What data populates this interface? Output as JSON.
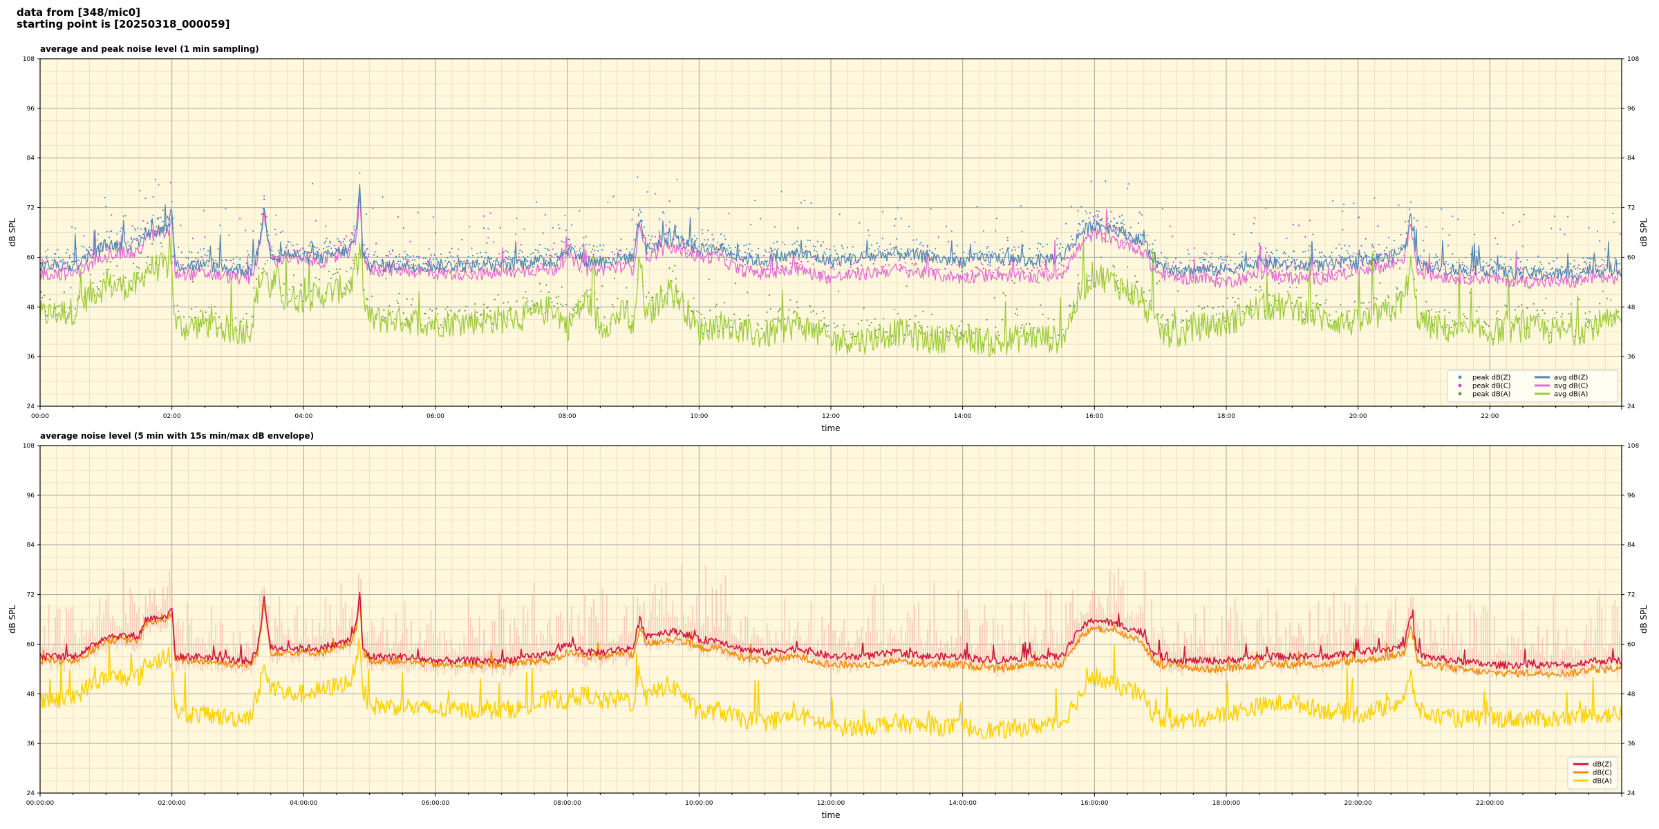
{
  "header": {
    "line1": "data from [348/mic0]",
    "line2": "starting point is [20250318_000059]"
  },
  "chart_data": [
    {
      "type": "line",
      "title": "average and peak noise level (1 min sampling)",
      "xlabel": "time",
      "ylabel": "dB SPL",
      "ylabel_right": "dB SPL",
      "ylim": [
        24,
        108
      ],
      "xlim": [
        0,
        24
      ],
      "x_unit": "hours",
      "yticks": [
        24,
        36,
        48,
        60,
        72,
        84,
        96,
        108
      ],
      "xticks": [
        "00:00",
        "02:00",
        "04:00",
        "06:00",
        "08:00",
        "10:00",
        "12:00",
        "14:00",
        "16:00",
        "18:00",
        "20:00",
        "22:00"
      ],
      "grid": true,
      "legend_position": "bottom-right",
      "legend": [
        {
          "label": "peak dB(Z)",
          "kind": "dot",
          "color": "#3a8fd0"
        },
        {
          "label": "peak dB(C)",
          "kind": "dot",
          "color": "#e040c8"
        },
        {
          "label": "peak dB(A)",
          "kind": "dot",
          "color": "#5a9a40"
        },
        {
          "label": "avg dB(Z)",
          "kind": "line",
          "color": "#4f86b4"
        },
        {
          "label": "avg dB(C)",
          "kind": "line",
          "color": "#e36ad6"
        },
        {
          "label": "avg dB(A)",
          "kind": "line",
          "color": "#9ccc3a"
        }
      ],
      "series_order": [
        "avg dB(A)",
        "avg dB(C)",
        "avg dB(Z)"
      ],
      "x": [
        0,
        0.5,
        0.75,
        1,
        1.5,
        1.6,
        1.95,
        2.0,
        2.05,
        2.2,
        2.5,
        3.0,
        3.2,
        3.3,
        3.4,
        3.5,
        3.6,
        3.7,
        4.0,
        4.3,
        4.5,
        4.7,
        4.8,
        4.85,
        4.9,
        5.0,
        5.5,
        6.0,
        7.0,
        7.5,
        7.8,
        8.0,
        8.3,
        8.5,
        8.9,
        9.0,
        9.1,
        9.2,
        9.5,
        9.7,
        10.0,
        10.3,
        10.6,
        11.0,
        11.5,
        12.0,
        12.5,
        13.0,
        13.5,
        14.0,
        14.5,
        15.0,
        15.5,
        15.8,
        16.0,
        16.3,
        16.7,
        16.9,
        17.0,
        17.3,
        17.5,
        18.0,
        18.5,
        19.0,
        19.5,
        20.0,
        20.5,
        20.7,
        20.8,
        20.9,
        21.0,
        21.5,
        22.0,
        22.5,
        23.0,
        23.3,
        23.5,
        23.7,
        24.0
      ],
      "series": [
        {
          "name": "avg dB(A)",
          "color": "#9ccc3a",
          "width": 1.3,
          "noise": 7,
          "values": [
            46,
            47,
            51,
            53,
            53,
            57,
            58,
            57,
            44,
            43,
            44,
            42,
            43,
            52,
            57,
            52,
            55,
            50,
            50,
            51,
            52,
            53,
            57,
            60,
            50,
            45,
            45,
            44,
            45,
            46,
            48,
            43,
            50,
            43,
            47,
            41,
            60,
            45,
            52,
            50,
            42,
            44,
            42,
            41,
            44,
            40,
            40,
            42,
            40,
            41,
            39,
            41,
            40,
            52,
            56,
            54,
            50,
            44,
            42,
            41,
            43,
            44,
            48,
            48,
            45,
            44,
            47,
            50,
            58,
            46,
            44,
            42,
            42,
            43,
            42,
            42,
            43,
            44,
            44
          ]
        },
        {
          "name": "avg dB(C)",
          "color": "#e36ad6",
          "width": 1.3,
          "noise": 3.2,
          "values": [
            56,
            56,
            58,
            61,
            61,
            65,
            66,
            70,
            56,
            56,
            56,
            55,
            55,
            60,
            70,
            60,
            59,
            60,
            59,
            59,
            60,
            61,
            65,
            76,
            60,
            57,
            57,
            56,
            56,
            57,
            57,
            60,
            57,
            57,
            58,
            57,
            69,
            60,
            62,
            62,
            60,
            60,
            57,
            56,
            57,
            55,
            56,
            57,
            56,
            55,
            56,
            55,
            56,
            63,
            66,
            64,
            62,
            57,
            56,
            55,
            55,
            54,
            56,
            55,
            55,
            57,
            58,
            60,
            68,
            57,
            56,
            55,
            55,
            54,
            54,
            54,
            55,
            55,
            55
          ]
        },
        {
          "name": "avg dB(Z)",
          "color": "#4f86b4",
          "width": 1.3,
          "noise": 3.2,
          "values": [
            58,
            58,
            60,
            63,
            63,
            66,
            67,
            71,
            58,
            58,
            58,
            57,
            57,
            61,
            71,
            61,
            60,
            61,
            60,
            60,
            61,
            62,
            66,
            77,
            61,
            58,
            58,
            58,
            58,
            59,
            59,
            62,
            59,
            59,
            60,
            60,
            70,
            62,
            64,
            64,
            62,
            62,
            60,
            59,
            61,
            59,
            60,
            61,
            60,
            59,
            60,
            59,
            60,
            66,
            68,
            67,
            64,
            60,
            58,
            57,
            57,
            57,
            59,
            58,
            58,
            59,
            60,
            62,
            70,
            59,
            58,
            57,
            57,
            56,
            56,
            56,
            57,
            57,
            57
          ]
        }
      ]
    },
    {
      "type": "line",
      "title": "average noise level (5 min with 15s min/max dB envelope)",
      "xlabel": "time",
      "ylabel": "dB SPL",
      "ylabel_right": "dB SPL",
      "ylim": [
        24,
        108
      ],
      "xlim": [
        0,
        24
      ],
      "x_unit": "hours",
      "yticks": [
        24,
        36,
        48,
        60,
        72,
        84,
        96,
        108
      ],
      "xticks": [
        "00:00:00",
        "02:00:00",
        "04:00:00",
        "06:00:00",
        "08:00:00",
        "10:00:00",
        "12:00:00",
        "14:00:00",
        "16:00:00",
        "18:00:00",
        "20:00:00",
        "22:00:00"
      ],
      "grid": true,
      "legend_position": "bottom-right",
      "legend": [
        {
          "label": "dB(Z)",
          "kind": "line",
          "color": "#d0143c"
        },
        {
          "label": "dB(C)",
          "kind": "line",
          "color": "#f08c00"
        },
        {
          "label": "dB(A)",
          "kind": "line",
          "color": "#ffd200"
        }
      ],
      "series_order": [
        "dB(A)",
        "dB(C)",
        "dB(Z)"
      ],
      "envelope_color": "#f4a8a0",
      "x": [
        0,
        0.5,
        0.75,
        1,
        1.5,
        1.6,
        1.95,
        2.0,
        2.05,
        2.2,
        2.5,
        3.0,
        3.2,
        3.3,
        3.4,
        3.5,
        3.6,
        3.7,
        4.0,
        4.3,
        4.5,
        4.7,
        4.8,
        4.85,
        4.9,
        5.0,
        5.5,
        6.0,
        7.0,
        7.5,
        7.8,
        8.0,
        8.3,
        8.5,
        8.9,
        9.0,
        9.1,
        9.2,
        9.5,
        9.7,
        10.0,
        10.3,
        10.6,
        11.0,
        11.5,
        12.0,
        12.5,
        13.0,
        13.5,
        14.0,
        14.5,
        15.0,
        15.5,
        15.8,
        16.0,
        16.3,
        16.7,
        16.9,
        17.0,
        17.3,
        17.5,
        18.0,
        18.5,
        19.0,
        19.5,
        20.0,
        20.5,
        20.7,
        20.8,
        20.9,
        21.0,
        21.5,
        22.0,
        22.5,
        23.0,
        23.3,
        23.5,
        23.7,
        24.0
      ],
      "series": [
        {
          "name": "dB(A)",
          "color": "#ffd200",
          "width": 1.6,
          "noise": 4.5,
          "values": [
            46,
            47,
            50,
            52,
            52,
            55,
            57,
            56,
            44,
            43,
            43,
            42,
            43,
            48,
            54,
            49,
            50,
            48,
            48,
            49,
            50,
            51,
            55,
            62,
            49,
            45,
            45,
            44,
            44,
            45,
            47,
            46,
            48,
            46,
            47,
            45,
            54,
            47,
            50,
            49,
            43,
            44,
            42,
            41,
            43,
            40,
            40,
            41,
            40,
            40,
            39,
            40,
            41,
            48,
            52,
            50,
            48,
            43,
            42,
            41,
            42,
            43,
            45,
            46,
            44,
            43,
            45,
            47,
            52,
            45,
            43,
            42,
            42,
            42,
            42,
            42,
            43,
            43,
            43
          ]
        },
        {
          "name": "dB(C)",
          "color": "#f08c00",
          "width": 1.6,
          "noise": 1.8,
          "values": [
            56,
            56,
            58,
            61,
            61,
            65,
            66,
            68,
            56,
            56,
            56,
            55,
            55,
            58,
            70,
            58,
            58,
            58,
            58,
            58,
            59,
            60,
            64,
            71,
            58,
            56,
            56,
            55,
            55,
            56,
            56,
            58,
            57,
            57,
            58,
            57,
            64,
            60,
            61,
            61,
            59,
            59,
            57,
            56,
            57,
            55,
            55,
            56,
            55,
            55,
            54,
            55,
            55,
            62,
            64,
            63,
            61,
            56,
            55,
            55,
            54,
            54,
            55,
            55,
            55,
            56,
            57,
            58,
            65,
            56,
            55,
            54,
            53,
            53,
            53,
            53,
            54,
            54,
            54
          ]
        },
        {
          "name": "dB(Z)",
          "color": "#d0143c",
          "width": 1.6,
          "noise": 1.8,
          "values": [
            57,
            57,
            59,
            62,
            62,
            66,
            67,
            69,
            57,
            57,
            57,
            56,
            56,
            59,
            71,
            59,
            59,
            59,
            59,
            59,
            60,
            61,
            65,
            72,
            59,
            57,
            57,
            56,
            56,
            57,
            58,
            60,
            58,
            58,
            59,
            59,
            66,
            62,
            63,
            63,
            61,
            61,
            59,
            58,
            59,
            57,
            57,
            58,
            57,
            57,
            56,
            57,
            57,
            64,
            66,
            65,
            63,
            58,
            57,
            56,
            56,
            56,
            57,
            57,
            57,
            58,
            59,
            60,
            67,
            58,
            57,
            56,
            55,
            55,
            55,
            55,
            56,
            56,
            56
          ]
        }
      ]
    }
  ]
}
